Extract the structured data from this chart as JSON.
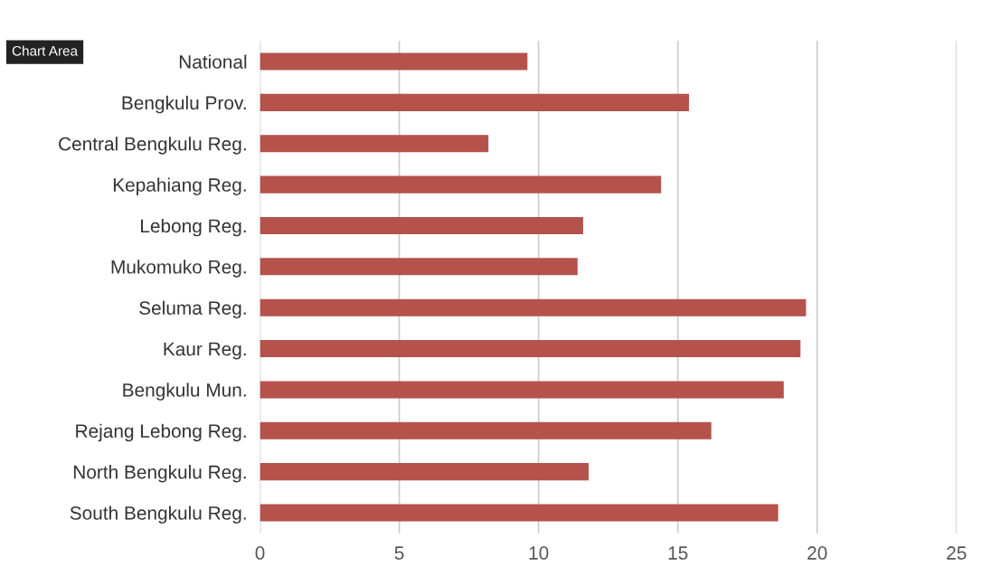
{
  "chart_data": {
    "type": "bar",
    "orientation": "horizontal",
    "categories": [
      "National",
      "Bengkulu Prov.",
      "Central Bengkulu Reg.",
      "Kepahiang Reg.",
      "Lebong Reg.",
      "Mukomuko Reg.",
      "Seluma Reg.",
      "Kaur Reg.",
      "Bengkulu Mun.",
      "Rejang Lebong Reg.",
      "North Bengkulu Reg.",
      "South Bengkulu Reg."
    ],
    "values": [
      9.6,
      15.4,
      8.2,
      14.4,
      11.6,
      11.4,
      19.6,
      19.4,
      18.8,
      16.2,
      11.8,
      18.6
    ],
    "color": "#b5524c",
    "xlim": [
      0,
      25
    ],
    "xticks": [
      0,
      5,
      10,
      15,
      20,
      25
    ],
    "grid": "x",
    "annotations": [
      "Chart Area"
    ]
  }
}
